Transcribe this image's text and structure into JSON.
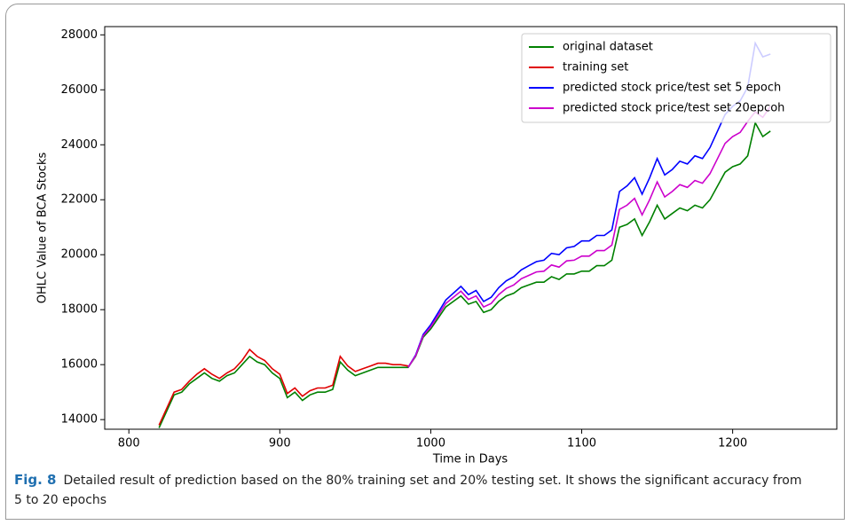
{
  "chart_data": {
    "type": "line",
    "x_label": "Time in Days",
    "y_label": "OHLC Value of BCA Stocks",
    "xlim": [
      784,
      1269
    ],
    "ylim": [
      13650,
      28300
    ],
    "xticks": [
      800,
      900,
      1000,
      1100,
      1200
    ],
    "yticks": [
      14000,
      16000,
      18000,
      20000,
      22000,
      24000,
      26000,
      28000
    ],
    "legend": "upper right",
    "x": [
      820,
      825,
      830,
      835,
      840,
      845,
      850,
      855,
      860,
      865,
      870,
      875,
      880,
      885,
      890,
      895,
      900,
      905,
      910,
      915,
      920,
      925,
      930,
      935,
      940,
      945,
      950,
      955,
      960,
      965,
      970,
      975,
      980,
      985,
      990,
      995,
      1000,
      1005,
      1010,
      1015,
      1020,
      1025,
      1030,
      1035,
      1040,
      1045,
      1050,
      1055,
      1060,
      1065,
      1070,
      1075,
      1080,
      1085,
      1090,
      1095,
      1100,
      1105,
      1110,
      1115,
      1120,
      1125,
      1130,
      1135,
      1140,
      1145,
      1150,
      1155,
      1160,
      1165,
      1170,
      1175,
      1180,
      1185,
      1190,
      1195,
      1200,
      1205,
      1210,
      1215,
      1220,
      1225
    ],
    "series": [
      {
        "name": "original dataset",
        "color": "#008000",
        "values": [
          13700,
          14300,
          14900,
          15000,
          15300,
          15500,
          15700,
          15500,
          15400,
          15600,
          15700,
          16000,
          16300,
          16100,
          16000,
          15700,
          15500,
          14800,
          15000,
          14700,
          14900,
          15000,
          15000,
          15100,
          16100,
          15800,
          15600,
          15700,
          15800,
          15900,
          15900,
          15900,
          15900,
          15900,
          16300,
          17000,
          17300,
          17700,
          18100,
          18300,
          18500,
          18200,
          18300,
          17900,
          18000,
          18300,
          18500,
          18600,
          18800,
          18900,
          19000,
          19000,
          19200,
          19100,
          19300,
          19300,
          19400,
          19400,
          19600,
          19600,
          19800,
          21000,
          21100,
          21300,
          20700,
          21200,
          21800,
          21300,
          21500,
          21700,
          21600,
          21800,
          21700,
          22000,
          22500,
          23000,
          23200,
          23300,
          23600,
          24800,
          24300,
          24500
        ]
      },
      {
        "name": "training set",
        "color": "#e00000",
        "values": [
          13800,
          14400,
          15000,
          15100,
          15400,
          15650,
          15850,
          15650,
          15500,
          15700,
          15850,
          16150,
          16550,
          16300,
          16150,
          15850,
          15650,
          14950,
          15150,
          14850,
          15050,
          15150,
          15150,
          15250,
          16300,
          15950,
          15750,
          15850,
          15950,
          16050,
          16050,
          16000,
          16000,
          15950,
          null,
          null,
          null,
          null,
          null,
          null,
          null,
          null,
          null,
          null,
          null,
          null,
          null,
          null,
          null,
          null,
          null,
          null,
          null,
          null,
          null,
          null,
          null,
          null,
          null,
          null,
          null,
          null,
          null,
          null,
          null,
          null,
          null,
          null,
          null,
          null,
          null,
          null,
          null,
          null,
          null,
          null,
          null,
          null,
          null,
          null,
          null,
          null
        ]
      },
      {
        "name": "predicted stock price/test set 5 epoch",
        "color": "#0000ff",
        "values": [
          null,
          null,
          null,
          null,
          null,
          null,
          null,
          null,
          null,
          null,
          null,
          null,
          null,
          null,
          null,
          null,
          null,
          null,
          null,
          null,
          null,
          null,
          null,
          null,
          null,
          null,
          null,
          null,
          null,
          null,
          null,
          null,
          null,
          15900,
          16350,
          17100,
          17450,
          17900,
          18350,
          18600,
          18850,
          18550,
          18700,
          18300,
          18450,
          18800,
          19050,
          19200,
          19450,
          19600,
          19750,
          19800,
          20050,
          20000,
          20250,
          20300,
          20500,
          20500,
          20700,
          20700,
          20900,
          22300,
          22500,
          22800,
          22200,
          22800,
          23500,
          22900,
          23100,
          23400,
          23300,
          23600,
          23500,
          23900,
          24500,
          25100,
          25400,
          25600,
          26100,
          27700,
          27200,
          27300
        ]
      },
      {
        "name": "predicted stock price/test set 20epcoh",
        "color": "#cc00cc",
        "values": [
          null,
          null,
          null,
          null,
          null,
          null,
          null,
          null,
          null,
          null,
          null,
          null,
          null,
          null,
          null,
          null,
          null,
          null,
          null,
          null,
          null,
          null,
          null,
          null,
          null,
          null,
          null,
          null,
          null,
          null,
          null,
          null,
          null,
          15900,
          16325,
          17050,
          17375,
          17800,
          18225,
          18450,
          18675,
          18375,
          18500,
          18100,
          18225,
          18550,
          18775,
          18900,
          19125,
          19250,
          19375,
          19400,
          19625,
          19550,
          19775,
          19800,
          19950,
          19950,
          20150,
          20150,
          20350,
          21650,
          21800,
          22050,
          21450,
          22000,
          22650,
          22100,
          22300,
          22550,
          22450,
          22700,
          22600,
          22950,
          23500,
          24050,
          24300,
          24450,
          24850,
          25200,
          25000,
          25400
        ]
      }
    ]
  },
  "caption": {
    "label": "Fig. 8",
    "text": "Detailed result of prediction based on the 80% training set and 20% testing set. It shows the significant accuracy from 5 to 20 epochs"
  }
}
